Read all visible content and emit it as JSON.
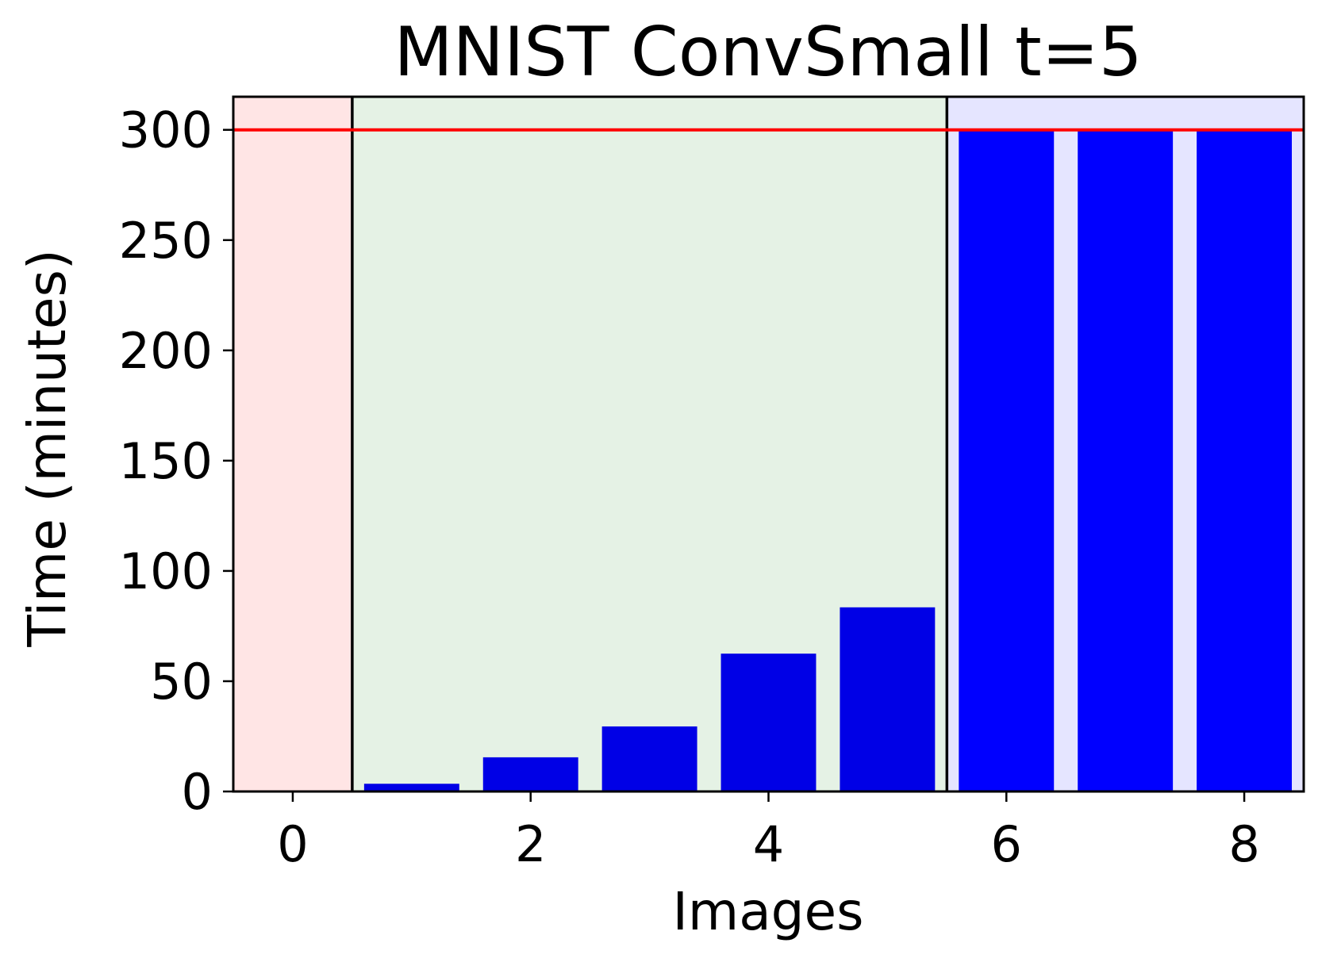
{
  "chart_data": {
    "type": "bar",
    "title": "MNIST ConvSmall t=5",
    "xlabel": "Images",
    "ylabel": "Time (minutes)",
    "xlim": [
      -0.5,
      8.5
    ],
    "ylim": [
      0,
      315
    ],
    "xticks": [
      0,
      2,
      4,
      6,
      8
    ],
    "yticks": [
      0,
      50,
      100,
      150,
      200,
      250,
      300
    ],
    "x": [
      0,
      1,
      2,
      3,
      4,
      5,
      6,
      7,
      8
    ],
    "values": [
      0.5,
      3.5,
      15.5,
      29.5,
      62.5,
      83.5,
      300,
      300,
      300
    ],
    "bar_colors": [
      "#0000e6",
      "#0000e6",
      "#0000e6",
      "#0000e6",
      "#0000e6",
      "#0000e6",
      "#0000ff",
      "#0000ff",
      "#0000ff"
    ],
    "bar_width": 0.8,
    "timeout_line": {
      "y": 300,
      "color": "#ff0000"
    },
    "regions": [
      {
        "x0": -0.5,
        "x1": 0.5,
        "color": "#ffe5e5"
      },
      {
        "x0": 0.5,
        "x1": 5.5,
        "color": "#e5f2e5"
      },
      {
        "x0": 5.5,
        "x1": 8.5,
        "color": "#e5e5ff"
      }
    ],
    "dividers": [
      0.5,
      5.5
    ],
    "grid": false
  }
}
